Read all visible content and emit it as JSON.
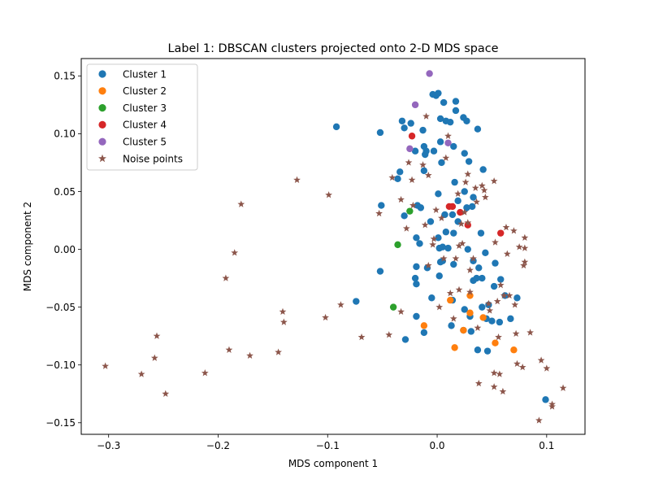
{
  "chart_data": {
    "type": "scatter",
    "title": "Label 1: DBSCAN clusters projected onto 2-D MDS space",
    "xlabel": "MDS component 1",
    "ylabel": "MDS component 2",
    "xlim": [
      -0.325,
      0.135
    ],
    "ylim": [
      -0.16,
      0.165
    ],
    "xticks": [
      -0.3,
      -0.2,
      -0.1,
      0.0,
      0.1
    ],
    "xtick_labels": [
      "−0.3",
      "−0.2",
      "−0.1",
      "0.0",
      "0.1"
    ],
    "yticks": [
      -0.15,
      -0.1,
      -0.05,
      0.0,
      0.05,
      0.1,
      0.15
    ],
    "ytick_labels": [
      "−0.15",
      "−0.10",
      "−0.05",
      "0.00",
      "0.05",
      "0.10",
      "0.15"
    ],
    "grid": false,
    "legend_position": "upper-left",
    "series": [
      {
        "name": "Cluster 1",
        "color": "#1f77b4",
        "marker": "circle",
        "points": [
          [
            -0.092,
            0.106
          ],
          [
            -0.052,
            0.101
          ],
          [
            -0.051,
            0.038
          ],
          [
            -0.052,
            -0.019
          ],
          [
            -0.074,
            -0.045
          ],
          [
            -0.032,
            0.111
          ],
          [
            -0.03,
            0.105
          ],
          [
            -0.024,
            0.109
          ],
          [
            -0.02,
            0.085
          ],
          [
            -0.013,
            0.103
          ],
          [
            -0.012,
            0.089
          ],
          [
            -0.01,
            0.085
          ],
          [
            -0.011,
            0.082
          ],
          [
            -0.004,
            0.134
          ],
          [
            -0.001,
            0.133
          ],
          [
            0.001,
            0.135
          ],
          [
            0.006,
            0.127
          ],
          [
            0.017,
            0.128
          ],
          [
            0.017,
            0.12
          ],
          [
            0.003,
            0.113
          ],
          [
            0.008,
            0.111
          ],
          [
            0.012,
            0.11
          ],
          [
            0.024,
            0.114
          ],
          [
            0.027,
            0.111
          ],
          [
            0.037,
            0.104
          ],
          [
            -0.003,
            0.085
          ],
          [
            0.003,
            0.093
          ],
          [
            0.015,
            0.089
          ],
          [
            0.025,
            0.083
          ],
          [
            0.029,
            0.076
          ],
          [
            0.004,
            0.075
          ],
          [
            -0.036,
            0.061
          ],
          [
            -0.034,
            0.067
          ],
          [
            -0.012,
            0.068
          ],
          [
            0.042,
            0.069
          ],
          [
            -0.018,
            0.038
          ],
          [
            -0.015,
            0.036
          ],
          [
            -0.03,
            0.029
          ],
          [
            0.001,
            0.048
          ],
          [
            0.016,
            0.058
          ],
          [
            0.025,
            0.05
          ],
          [
            0.033,
            0.045
          ],
          [
            0.019,
            0.042
          ],
          [
            0.027,
            0.036
          ],
          [
            0.032,
            0.037
          ],
          [
            0.007,
            0.03
          ],
          [
            0.014,
            0.03
          ],
          [
            -0.006,
            0.024
          ],
          [
            0.019,
            0.024
          ],
          [
            0.001,
            0.01
          ],
          [
            0.008,
            0.015
          ],
          [
            0.015,
            0.014
          ],
          [
            0.04,
            0.014
          ],
          [
            -0.019,
            0.01
          ],
          [
            -0.016,
            0.005
          ],
          [
            0.002,
            0.001
          ],
          [
            0.005,
            0.002
          ],
          [
            0.01,
            0.001
          ],
          [
            0.028,
            0.0
          ],
          [
            0.044,
            -0.003
          ],
          [
            0.053,
            -0.012
          ],
          [
            -0.019,
            -0.015
          ],
          [
            -0.009,
            -0.016
          ],
          [
            0.005,
            -0.01
          ],
          [
            0.003,
            -0.011
          ],
          [
            0.015,
            -0.013
          ],
          [
            0.033,
            -0.01
          ],
          [
            0.038,
            -0.016
          ],
          [
            0.002,
            -0.023
          ],
          [
            -0.02,
            -0.025
          ],
          [
            -0.019,
            -0.03
          ],
          [
            0.033,
            -0.027
          ],
          [
            0.036,
            -0.025
          ],
          [
            0.041,
            -0.025
          ],
          [
            0.052,
            -0.032
          ],
          [
            0.058,
            -0.026
          ],
          [
            0.062,
            -0.04
          ],
          [
            0.073,
            -0.042
          ],
          [
            -0.005,
            -0.042
          ],
          [
            0.014,
            -0.044
          ],
          [
            0.025,
            -0.052
          ],
          [
            0.041,
            -0.05
          ],
          [
            0.047,
            -0.048
          ],
          [
            -0.019,
            -0.058
          ],
          [
            0.03,
            -0.058
          ],
          [
            0.045,
            -0.06
          ],
          [
            0.05,
            -0.062
          ],
          [
            0.057,
            -0.063
          ],
          [
            0.067,
            -0.06
          ],
          [
            -0.029,
            -0.078
          ],
          [
            -0.012,
            -0.072
          ],
          [
            0.013,
            -0.066
          ],
          [
            0.024,
            -0.07
          ],
          [
            0.031,
            -0.071
          ],
          [
            0.037,
            -0.087
          ],
          [
            0.046,
            -0.088
          ],
          [
            0.099,
            -0.13
          ]
        ]
      },
      {
        "name": "Cluster 2",
        "color": "#ff7f0e",
        "marker": "circle",
        "points": [
          [
            0.012,
            -0.044
          ],
          [
            0.03,
            -0.04
          ],
          [
            0.03,
            -0.055
          ],
          [
            0.042,
            -0.059
          ],
          [
            0.024,
            -0.07
          ],
          [
            -0.012,
            -0.066
          ],
          [
            0.016,
            -0.085
          ],
          [
            0.053,
            -0.081
          ],
          [
            0.07,
            -0.087
          ]
        ]
      },
      {
        "name": "Cluster 3",
        "color": "#2ca02c",
        "marker": "circle",
        "points": [
          [
            -0.025,
            0.033
          ],
          [
            -0.036,
            0.004
          ],
          [
            -0.04,
            -0.05
          ]
        ]
      },
      {
        "name": "Cluster 4",
        "color": "#d62728",
        "marker": "circle",
        "points": [
          [
            -0.023,
            0.098
          ],
          [
            0.011,
            0.037
          ],
          [
            0.014,
            0.037
          ],
          [
            0.021,
            0.032
          ],
          [
            0.028,
            0.021
          ],
          [
            0.058,
            0.014
          ]
        ]
      },
      {
        "name": "Cluster 5",
        "color": "#9467bd",
        "marker": "circle",
        "points": [
          [
            -0.007,
            0.152
          ],
          [
            -0.02,
            0.125
          ],
          [
            0.01,
            0.092
          ],
          [
            -0.025,
            0.087
          ]
        ]
      },
      {
        "name": "Noise points",
        "color": "#8c564b",
        "marker": "star",
        "points": [
          [
            -0.303,
            -0.101
          ],
          [
            -0.27,
            -0.108
          ],
          [
            -0.258,
            -0.094
          ],
          [
            -0.256,
            -0.075
          ],
          [
            -0.248,
            -0.125
          ],
          [
            -0.212,
            -0.107
          ],
          [
            -0.193,
            -0.025
          ],
          [
            -0.19,
            -0.087
          ],
          [
            -0.185,
            -0.003
          ],
          [
            -0.179,
            0.039
          ],
          [
            -0.171,
            -0.092
          ],
          [
            -0.145,
            -0.089
          ],
          [
            -0.141,
            -0.054
          ],
          [
            -0.14,
            -0.063
          ],
          [
            -0.128,
            0.06
          ],
          [
            -0.102,
            -0.059
          ],
          [
            -0.099,
            0.047
          ],
          [
            -0.088,
            -0.048
          ],
          [
            -0.069,
            -0.076
          ],
          [
            -0.053,
            0.031
          ],
          [
            -0.044,
            -0.074
          ],
          [
            -0.041,
            0.062
          ],
          [
            -0.033,
            0.043
          ],
          [
            -0.033,
            -0.054
          ],
          [
            -0.028,
            0.018
          ],
          [
            -0.026,
            0.075
          ],
          [
            -0.023,
            0.06
          ],
          [
            -0.022,
            0.038
          ],
          [
            -0.013,
            0.073
          ],
          [
            -0.011,
            0.021
          ],
          [
            -0.01,
            0.115
          ],
          [
            -0.008,
            0.064
          ],
          [
            -0.008,
            -0.014
          ],
          [
            -0.004,
            0.004
          ],
          [
            -0.003,
            0.009
          ],
          [
            -0.001,
            0.034
          ],
          [
            0.002,
            -0.05
          ],
          [
            0.004,
            0.027
          ],
          [
            0.006,
            -0.008
          ],
          [
            0.008,
            0.079
          ],
          [
            0.01,
            0.098
          ],
          [
            0.012,
            -0.038
          ],
          [
            0.015,
            -0.06
          ],
          [
            0.017,
            -0.008
          ],
          [
            0.019,
            0.048
          ],
          [
            0.02,
            0.003
          ],
          [
            0.02,
            -0.035
          ],
          [
            0.022,
            0.022
          ],
          [
            0.023,
            0.005
          ],
          [
            0.025,
            0.032
          ],
          [
            0.026,
            0.058
          ],
          [
            0.028,
            0.065
          ],
          [
            0.028,
            0.023
          ],
          [
            0.03,
            -0.018
          ],
          [
            0.03,
            -0.037
          ],
          [
            0.033,
            -0.008
          ],
          [
            0.035,
            0.053
          ],
          [
            0.036,
            0.041
          ],
          [
            0.037,
            -0.068
          ],
          [
            0.038,
            -0.116
          ],
          [
            0.041,
            0.055
          ],
          [
            0.043,
            0.051
          ],
          [
            0.044,
            0.045
          ],
          [
            0.047,
            -0.047
          ],
          [
            0.048,
            -0.053
          ],
          [
            0.052,
            0.059
          ],
          [
            0.052,
            -0.107
          ],
          [
            0.052,
            -0.119
          ],
          [
            0.053,
            0.006
          ],
          [
            0.055,
            -0.045
          ],
          [
            0.056,
            -0.076
          ],
          [
            0.057,
            -0.108
          ],
          [
            0.058,
            -0.031
          ],
          [
            0.06,
            -0.123
          ],
          [
            0.061,
            -0.04
          ],
          [
            0.063,
            0.019
          ],
          [
            0.064,
            -0.004
          ],
          [
            0.066,
            -0.04
          ],
          [
            0.07,
            0.016
          ],
          [
            0.071,
            -0.048
          ],
          [
            0.072,
            -0.073
          ],
          [
            0.073,
            -0.099
          ],
          [
            0.075,
            0.002
          ],
          [
            0.078,
            -0.102
          ],
          [
            0.079,
            -0.014
          ],
          [
            0.08,
            -0.011
          ],
          [
            0.08,
            0.01
          ],
          [
            0.08,
            0.001
          ],
          [
            0.085,
            -0.072
          ],
          [
            0.093,
            -0.148
          ],
          [
            0.095,
            -0.096
          ],
          [
            0.1,
            -0.103
          ],
          [
            0.105,
            -0.136
          ],
          [
            0.105,
            -0.134
          ],
          [
            0.115,
            -0.12
          ]
        ]
      }
    ]
  }
}
